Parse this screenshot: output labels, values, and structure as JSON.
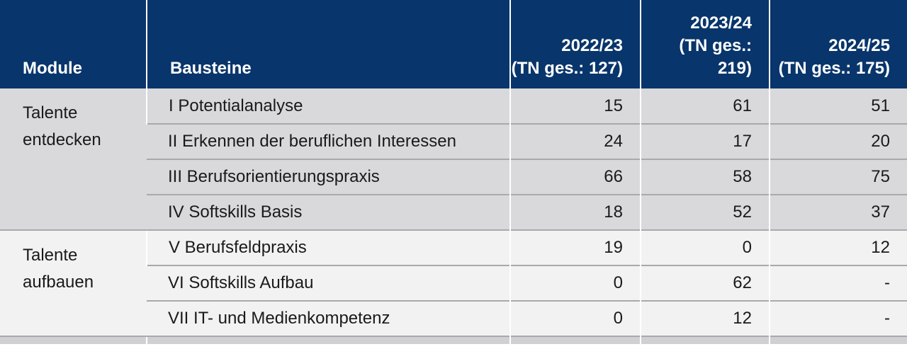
{
  "table": {
    "header": [
      "Module",
      "Bausteine",
      "2022/23",
      "2023/24",
      "2024/25"
    ],
    "subheader": [
      "(TN ges.: 127)",
      "(TN ges.: 219)",
      "(TN ges.: 175)"
    ],
    "groups": [
      {
        "module": [
          "Talente",
          "entdecken"
        ],
        "rows": [
          [
            "I Potentialanalyse",
            "15",
            "61",
            "51"
          ],
          [
            "II Erkennen der beruflichen Interessen",
            "24",
            "17",
            "20"
          ],
          [
            "III Berufsorientierungspraxis",
            "66",
            "58",
            "75"
          ],
          [
            "IV Softskills Basis",
            "18",
            "52",
            "37"
          ]
        ]
      },
      {
        "module": [
          "Talente",
          "aufbauen"
        ],
        "rows": [
          [
            "V Berufsfeldpraxis",
            "19",
            "0",
            "12"
          ],
          [
            "VI Softskills Aufbau",
            "0",
            "62",
            "-"
          ],
          [
            "VII IT- und Medienkompetenz",
            "0",
            "12",
            "-"
          ]
        ]
      }
    ]
  }
}
